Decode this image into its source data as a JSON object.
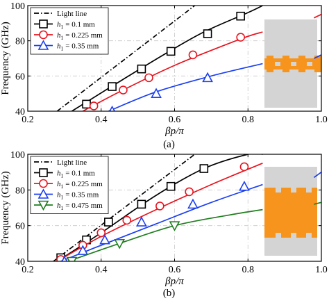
{
  "colors": {
    "light_line": "#000000",
    "h1_0.1": "#000000",
    "h1_0.225": "#e8141e",
    "h1_0.35": "#1a3ff0",
    "h1_0.475": "#1e7d1e",
    "inset_bg": "#d4d4d4",
    "inset_metal": "#f7941d",
    "grid": "#c8c8c8"
  },
  "chart_data": [
    {
      "type": "line",
      "panel_label": "(a)",
      "xlabel": "βp/π",
      "ylabel": "Frequency (GHz)",
      "xlim": [
        0.2,
        1.0
      ],
      "ylim": [
        40,
        100
      ],
      "x_ticks": [
        "0.2",
        "0.4",
        "0.6",
        "0.8",
        "1.0"
      ],
      "y_ticks": [
        "40",
        "60",
        "80",
        "100"
      ],
      "grid": "dash-dot",
      "legend_position": "top-left",
      "legend": [
        {
          "sub": "",
          "text": "Light line",
          "marker": "none",
          "dash": "dashdot",
          "color_key": "light_line"
        },
        {
          "sub": "1",
          "text": "= 0.1 mm",
          "marker": "square",
          "color_key": "h1_0.1"
        },
        {
          "sub": "1",
          "text": "= 0.225 mm",
          "marker": "circle",
          "color_key": "h1_0.225"
        },
        {
          "sub": "1",
          "text": "= 0.35 mm",
          "marker": "triangle-up",
          "color_key": "h1_0.35"
        }
      ],
      "series": [
        {
          "name": "Light line",
          "marker": "none",
          "dash": "dashdot",
          "color_key": "light_line",
          "x": [
            0.28,
            0.655
          ],
          "y": [
            40,
            100
          ]
        },
        {
          "name": "h1 = 0.1 mm",
          "marker": "square",
          "color_key": "h1_0.1",
          "x": [
            0.32,
            0.42,
            0.57,
            0.68,
            0.8,
            0.84
          ],
          "y": [
            40,
            53,
            72,
            85,
            96,
            100
          ],
          "marker_x": [
            0.36,
            0.43,
            0.51,
            0.59,
            0.69,
            0.78
          ],
          "marker_y": [
            44,
            54,
            64,
            74,
            84,
            94
          ]
        },
        {
          "name": "h1 = 0.225 mm",
          "marker": "circle",
          "color_key": "h1_0.225",
          "x": [
            0.35,
            0.45,
            0.6,
            0.78,
            0.84
          ],
          "y": [
            40,
            51,
            66,
            81,
            85
          ],
          "marker_x": [
            0.38,
            0.46,
            0.53,
            0.65,
            0.78
          ],
          "marker_y": [
            43,
            52,
            59,
            72,
            82
          ]
        },
        {
          "name": "h1 = 0.35 mm",
          "marker": "triangle-up",
          "color_key": "h1_0.35",
          "x": [
            0.42,
            0.55,
            0.7,
            0.84
          ],
          "y": [
            40,
            51,
            60,
            67
          ],
          "marker_x": [
            0.43,
            0.55,
            0.69
          ],
          "marker_y": [
            40,
            50,
            59
          ]
        },
        {
          "name": "",
          "marker": "none",
          "color_key": "h1_0.225",
          "x": [
            0.98,
            1.0
          ],
          "y": [
            93,
            95
          ]
        },
        {
          "name": "",
          "marker": "none",
          "color_key": "h1_0.35",
          "x": [
            0.98,
            1.0
          ],
          "y": [
            70,
            72
          ]
        }
      ]
    },
    {
      "type": "line",
      "panel_label": "(b)",
      "xlabel": "βp/π",
      "ylabel": "Frequency (GHz)",
      "xlim": [
        0.2,
        1.0
      ],
      "ylim": [
        40,
        100
      ],
      "x_ticks": [
        "0.2",
        "0.4",
        "0.6",
        "0.8",
        "1.0"
      ],
      "y_ticks": [
        "40",
        "60",
        "80",
        "100"
      ],
      "grid": "dash-dot",
      "legend_position": "top-left",
      "legend": [
        {
          "sub": "",
          "text": "Light line",
          "marker": "none",
          "dash": "dashdot",
          "color_key": "light_line"
        },
        {
          "sub": "1",
          "text": "= 0.1 mm",
          "marker": "square",
          "color_key": "h1_0.1"
        },
        {
          "sub": "1",
          "text": "= 0.225 mm",
          "marker": "circle",
          "color_key": "h1_0.225"
        },
        {
          "sub": "1",
          "text": "= 0.35 mm",
          "marker": "triangle-up",
          "color_key": "h1_0.35"
        },
        {
          "sub": "1",
          "text": "= 0.475 mm",
          "marker": "triangle-down",
          "color_key": "h1_0.475"
        }
      ],
      "series": [
        {
          "name": "Light line",
          "marker": "none",
          "dash": "dashdot",
          "color_key": "light_line",
          "x": [
            0.27,
            0.655
          ],
          "y": [
            40,
            100
          ]
        },
        {
          "name": "h1 = 0.1 mm",
          "marker": "square",
          "color_key": "h1_0.1",
          "x": [
            0.28,
            0.4,
            0.55,
            0.68,
            0.8,
            0.84
          ],
          "y": [
            40,
            56,
            77,
            92,
            100,
            100
          ],
          "marker_x": [
            0.29,
            0.36,
            0.42,
            0.51,
            0.59,
            0.68
          ],
          "marker_y": [
            42,
            52,
            62,
            72,
            82,
            92
          ]
        },
        {
          "name": "h1 = 0.225 mm",
          "marker": "circle",
          "color_key": "h1_0.225",
          "x": [
            0.28,
            0.4,
            0.55,
            0.7,
            0.84
          ],
          "y": [
            40,
            54,
            69,
            83,
            95
          ],
          "marker_x": [
            0.29,
            0.35,
            0.4,
            0.47,
            0.56,
            0.64,
            0.79
          ],
          "marker_y": [
            41,
            49,
            56,
            63,
            71,
            79,
            93
          ]
        },
        {
          "name": "h1 = 0.35 mm",
          "marker": "triangle-up",
          "color_key": "h1_0.35",
          "x": [
            0.29,
            0.4,
            0.55,
            0.7,
            0.84
          ],
          "y": [
            40,
            49,
            61,
            73,
            83
          ],
          "marker_x": [
            0.3,
            0.35,
            0.41,
            0.51,
            0.65,
            0.79
          ],
          "marker_y": [
            40,
            46,
            52,
            62,
            72,
            82
          ]
        },
        {
          "name": "h1 = 0.475 mm",
          "marker": "triangle-down",
          "color_key": "h1_0.475",
          "x": [
            0.31,
            0.45,
            0.6,
            0.75,
            0.84
          ],
          "y": [
            40,
            50,
            60,
            66,
            69
          ],
          "marker_x": [
            0.32,
            0.45,
            0.6
          ],
          "marker_y": [
            40,
            50,
            60
          ]
        },
        {
          "name": "",
          "marker": "none",
          "color_key": "h1_0.35",
          "x": [
            0.98,
            1.0
          ],
          "y": [
            87,
            90
          ]
        },
        {
          "name": "",
          "marker": "none",
          "color_key": "h1_0.475",
          "x": [
            0.98,
            1.0
          ],
          "y": [
            72,
            73
          ]
        }
      ]
    }
  ]
}
